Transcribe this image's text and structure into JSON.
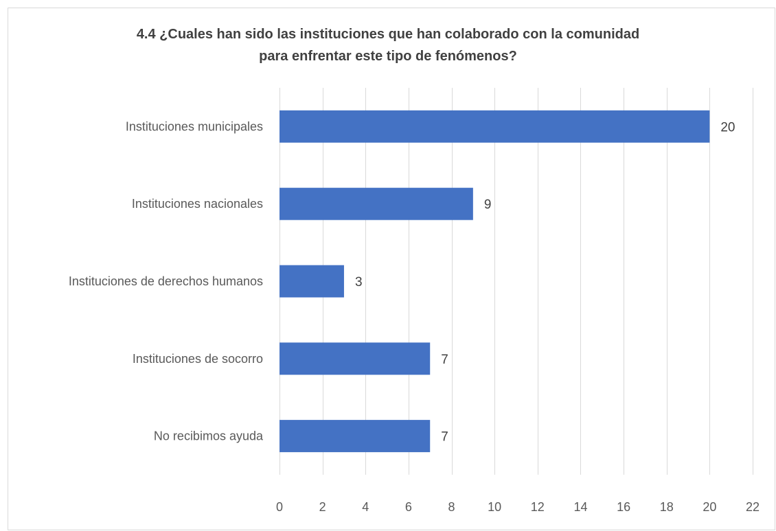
{
  "chart_data": {
    "type": "bar",
    "orientation": "horizontal",
    "title": "4.4 ¿Cuales han sido las instituciones que han colaborado con la comunidad para enfrentar este tipo de fenómenos?",
    "title_lines": [
      "4.4 ¿Cuales han sido las instituciones que han colaborado con la comunidad",
      "para enfrentar este tipo de fenómenos?"
    ],
    "categories": [
      "Instituciones municipales",
      "Instituciones nacionales",
      "Instituciones de derechos humanos",
      "Instituciones de socorro",
      "No recibimos ayuda"
    ],
    "values": [
      20,
      9,
      3,
      7,
      7
    ],
    "xlim": [
      0,
      22
    ],
    "xticks": [
      0,
      2,
      4,
      6,
      8,
      10,
      12,
      14,
      16,
      18,
      20,
      22
    ],
    "grid": true,
    "legend": "none",
    "data_labels": true,
    "bar_color": "#4472c4",
    "grid_color": "#d9d9d9"
  }
}
